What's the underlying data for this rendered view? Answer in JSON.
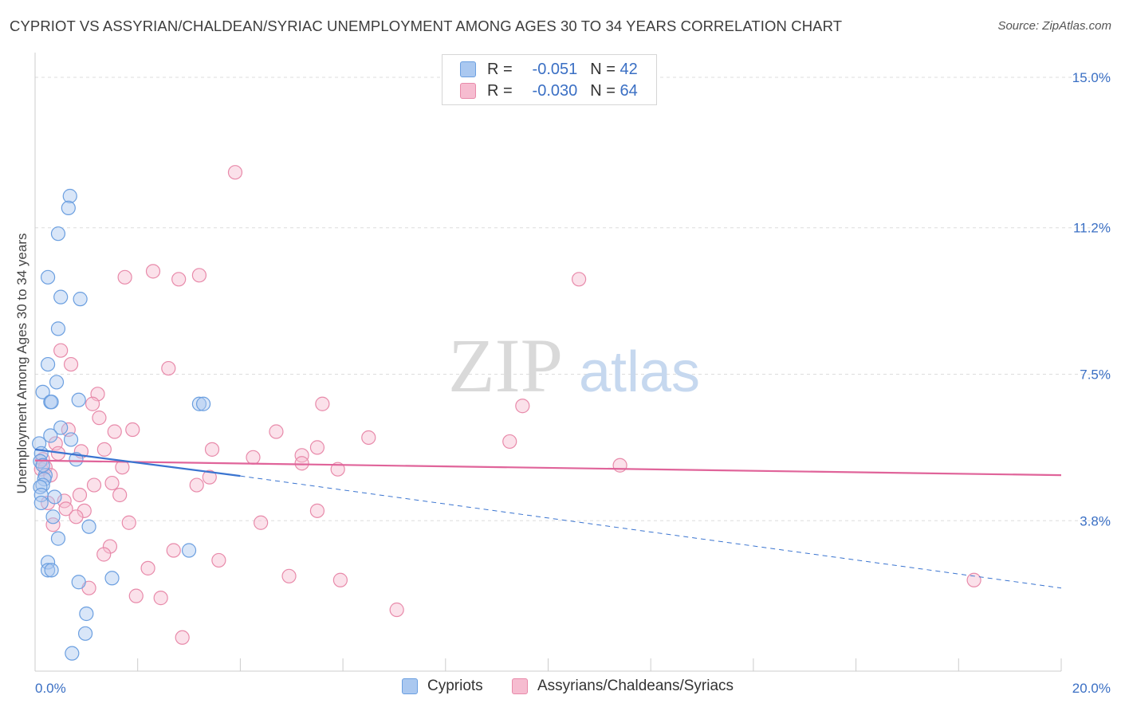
{
  "title": "CYPRIOT VS ASSYRIAN/CHALDEAN/SYRIAC UNEMPLOYMENT AMONG AGES 30 TO 34 YEARS CORRELATION CHART",
  "source": "Source: ZipAtlas.com",
  "watermark": {
    "zip": "ZIP",
    "atlas": "atlas"
  },
  "legend_top": [
    {
      "r_label": "R =",
      "r_value": "-0.051",
      "n_label": "N =",
      "n_value": "42"
    },
    {
      "r_label": "R =",
      "r_value": "-0.030",
      "n_label": "N =",
      "n_value": "64"
    }
  ],
  "legend_bottom": [
    "Cypriots",
    "Assyrians/Chaldeans/Syriacs"
  ],
  "colors": {
    "blue_fill": "#aac8f0",
    "blue_stroke": "#6b9fe0",
    "blue_line": "#3a74d0",
    "pink_fill": "#f6bcd0",
    "pink_stroke": "#e88aaa",
    "pink_line": "#e0649a",
    "grid": "#dddddd",
    "tick_label": "#3a6fc4"
  },
  "chart_data": {
    "type": "scatter",
    "title": "CYPRIOT VS ASSYRIAN/CHALDEAN/SYRIAC UNEMPLOYMENT AMONG AGES 30 TO 34 YEARS CORRELATION CHART",
    "xlabel": "",
    "ylabel": "Unemployment Among Ages 30 to 34 years",
    "xlim": [
      0,
      20
    ],
    "ylim": [
      0,
      15.6
    ],
    "x_tick_labels": [
      "0.0%",
      "20.0%"
    ],
    "y_ticks": [
      3.8,
      7.5,
      11.2,
      15.0
    ],
    "y_tick_labels": [
      "3.8%",
      "7.5%",
      "11.2%",
      "15.0%"
    ],
    "series": [
      {
        "name": "Cypriots",
        "r": -0.051,
        "n": 42,
        "trend": {
          "x": [
            0,
            4.0
          ],
          "y": [
            5.6,
            4.93
          ],
          "extend_x": 20,
          "extend_y": 2.1
        },
        "points": [
          [
            0.68,
            12.0
          ],
          [
            0.65,
            11.7
          ],
          [
            0.45,
            11.05
          ],
          [
            0.25,
            9.95
          ],
          [
            0.5,
            9.45
          ],
          [
            0.88,
            9.4
          ],
          [
            0.45,
            8.65
          ],
          [
            0.25,
            7.75
          ],
          [
            0.42,
            7.3
          ],
          [
            0.15,
            7.05
          ],
          [
            0.3,
            6.8
          ],
          [
            0.32,
            6.8
          ],
          [
            0.85,
            6.85
          ],
          [
            3.2,
            6.75
          ],
          [
            3.28,
            6.75
          ],
          [
            0.5,
            6.15
          ],
          [
            0.3,
            5.95
          ],
          [
            0.7,
            5.85
          ],
          [
            0.08,
            5.75
          ],
          [
            0.12,
            5.5
          ],
          [
            0.1,
            5.3
          ],
          [
            0.8,
            5.35
          ],
          [
            0.2,
            4.95
          ],
          [
            0.18,
            4.85
          ],
          [
            0.15,
            4.7
          ],
          [
            0.1,
            4.65
          ],
          [
            0.12,
            4.45
          ],
          [
            0.38,
            4.4
          ],
          [
            0.12,
            4.25
          ],
          [
            0.35,
            3.9
          ],
          [
            1.05,
            3.65
          ],
          [
            0.45,
            3.35
          ],
          [
            3.0,
            3.05
          ],
          [
            0.25,
            2.75
          ],
          [
            0.25,
            2.55
          ],
          [
            0.32,
            2.55
          ],
          [
            1.5,
            2.35
          ],
          [
            0.85,
            2.25
          ],
          [
            1.0,
            1.45
          ],
          [
            0.98,
            0.95
          ],
          [
            0.72,
            0.45
          ],
          [
            0.15,
            5.2
          ]
        ]
      },
      {
        "name": "Assyrians/Chaldeans/Syriacs",
        "r": -0.03,
        "n": 64,
        "trend": {
          "x": [
            0,
            20
          ],
          "y": [
            5.32,
            4.95
          ]
        },
        "points": [
          [
            3.9,
            12.6
          ],
          [
            2.3,
            10.1
          ],
          [
            1.75,
            9.95
          ],
          [
            2.8,
            9.9
          ],
          [
            3.2,
            10.0
          ],
          [
            10.6,
            9.9
          ],
          [
            0.5,
            8.1
          ],
          [
            0.7,
            7.75
          ],
          [
            2.6,
            7.65
          ],
          [
            1.22,
            7.0
          ],
          [
            1.12,
            6.75
          ],
          [
            5.6,
            6.75
          ],
          [
            9.5,
            6.7
          ],
          [
            1.25,
            6.4
          ],
          [
            0.65,
            6.1
          ],
          [
            1.55,
            6.05
          ],
          [
            1.9,
            6.1
          ],
          [
            4.7,
            6.05
          ],
          [
            6.5,
            5.9
          ],
          [
            9.25,
            5.8
          ],
          [
            0.4,
            5.75
          ],
          [
            1.35,
            5.6
          ],
          [
            3.45,
            5.6
          ],
          [
            5.5,
            5.65
          ],
          [
            0.45,
            5.5
          ],
          [
            0.9,
            5.55
          ],
          [
            4.25,
            5.4
          ],
          [
            5.2,
            5.45
          ],
          [
            5.2,
            5.25
          ],
          [
            0.15,
            5.35
          ],
          [
            0.12,
            5.1
          ],
          [
            0.2,
            5.15
          ],
          [
            1.7,
            5.15
          ],
          [
            5.9,
            5.1
          ],
          [
            11.4,
            5.2
          ],
          [
            3.4,
            4.9
          ],
          [
            0.3,
            4.95
          ],
          [
            1.5,
            4.75
          ],
          [
            1.15,
            4.7
          ],
          [
            3.15,
            4.7
          ],
          [
            1.65,
            4.45
          ],
          [
            0.87,
            4.45
          ],
          [
            0.57,
            4.3
          ],
          [
            0.25,
            4.25
          ],
          [
            0.6,
            4.1
          ],
          [
            0.96,
            4.05
          ],
          [
            5.5,
            4.05
          ],
          [
            0.8,
            3.9
          ],
          [
            4.4,
            3.75
          ],
          [
            1.83,
            3.75
          ],
          [
            0.35,
            3.7
          ],
          [
            1.46,
            3.15
          ],
          [
            1.34,
            2.95
          ],
          [
            2.7,
            3.05
          ],
          [
            3.58,
            2.8
          ],
          [
            2.2,
            2.6
          ],
          [
            4.95,
            2.4
          ],
          [
            5.95,
            2.3
          ],
          [
            1.05,
            2.1
          ],
          [
            1.97,
            1.9
          ],
          [
            2.45,
            1.85
          ],
          [
            7.05,
            1.55
          ],
          [
            18.3,
            2.3
          ],
          [
            2.87,
            0.85
          ]
        ]
      }
    ]
  }
}
